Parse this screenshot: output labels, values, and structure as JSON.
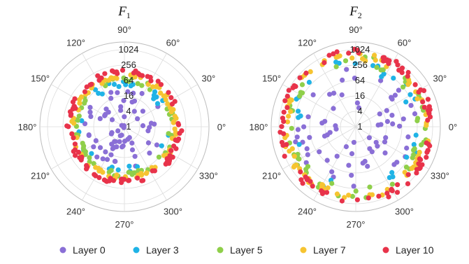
{
  "chart_data": [
    {
      "type": "scatter",
      "projection": "polar",
      "title": "F",
      "title_sub": "1",
      "radial_scale": "log2",
      "radial_ticks": [
        "1",
        "4",
        "16",
        "64",
        "256",
        "1024"
      ],
      "angle_ticks": [
        "0°",
        "30°",
        "60°",
        "90°",
        "120°",
        "150°",
        "180°",
        "210°",
        "240°",
        "270°",
        "300°",
        "330°"
      ],
      "grid": true,
      "series": [
        {
          "name": "Layer 0",
          "color": "#8a6fd6",
          "radius_range": [
            1,
            40
          ]
        },
        {
          "name": "Layer 3",
          "color": "#1fb3e6",
          "radius_range": [
            35,
            70
          ]
        },
        {
          "name": "Layer 5",
          "color": "#8fcf4a",
          "radius_range": [
            55,
            90
          ]
        },
        {
          "name": "Layer 7",
          "color": "#f6c431",
          "radius_range": [
            80,
            120
          ]
        },
        {
          "name": "Layer 10",
          "color": "#e8334a",
          "radius_range": [
            110,
            180
          ]
        }
      ]
    },
    {
      "type": "scatter",
      "projection": "polar",
      "title": "F",
      "title_sub": "2",
      "radial_scale": "log2",
      "radial_ticks": [
        "1",
        "4",
        "16",
        "64",
        "256",
        "1024"
      ],
      "angle_ticks": [
        "0°",
        "30°",
        "60°",
        "90°",
        "120°",
        "150°",
        "180°",
        "210°",
        "240°",
        "270°",
        "300°",
        "330°"
      ],
      "grid": true,
      "series": [
        {
          "name": "Layer 0",
          "color": "#8a6fd6",
          "radius_range": [
            4,
            300
          ]
        },
        {
          "name": "Layer 3",
          "color": "#1fb3e6",
          "radius_range": [
            150,
            500
          ]
        },
        {
          "name": "Layer 5",
          "color": "#8fcf4a",
          "radius_range": [
            250,
            650
          ]
        },
        {
          "name": "Layer 7",
          "color": "#f6c431",
          "radius_range": [
            400,
            800
          ]
        },
        {
          "name": "Layer 10",
          "color": "#e8334a",
          "radius_range": [
            600,
            1100
          ]
        }
      ]
    }
  ],
  "legend": {
    "placement": "bottom",
    "items": [
      {
        "label": "Layer 0",
        "color": "#8a6fd6"
      },
      {
        "label": "Layer 3",
        "color": "#1fb3e6"
      },
      {
        "label": "Layer 5",
        "color": "#8fcf4a"
      },
      {
        "label": "Layer 7",
        "color": "#f6c431"
      },
      {
        "label": "Layer 10",
        "color": "#e8334a"
      }
    ]
  }
}
